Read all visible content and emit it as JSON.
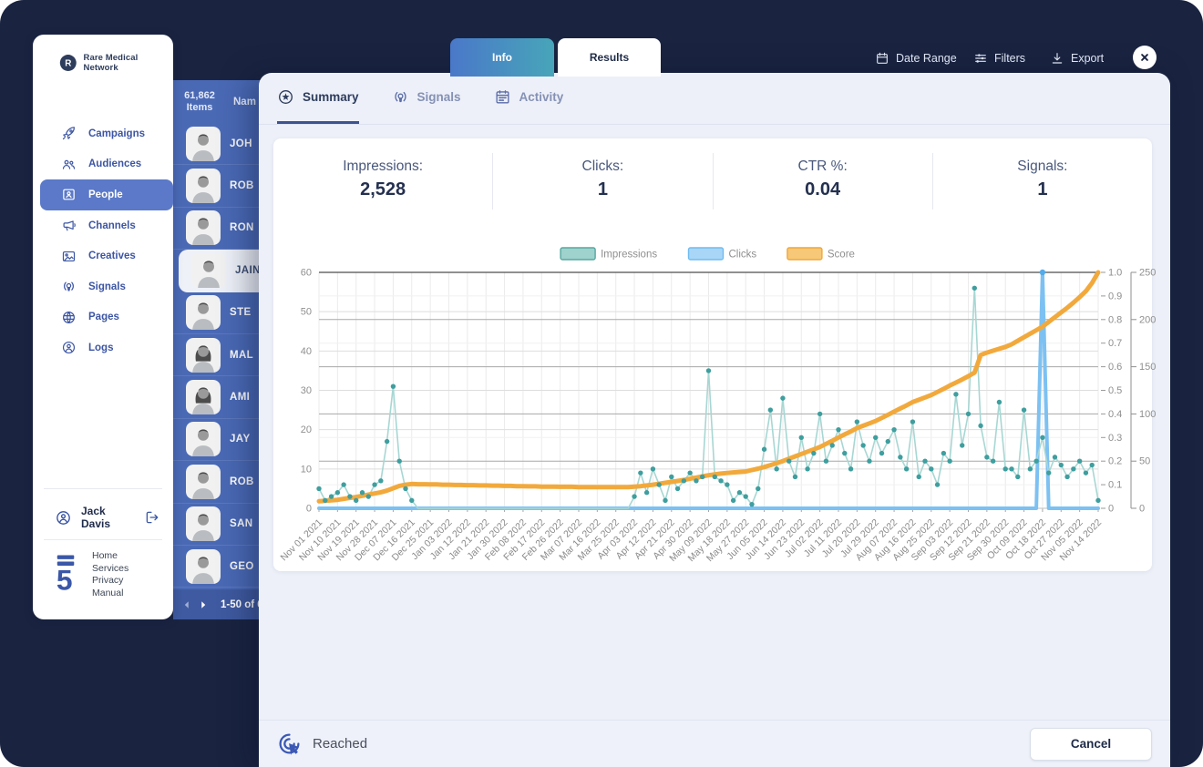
{
  "colors": {
    "frame_navy": "#1A2441",
    "panel_blue": "#4A69B5",
    "active_nav_blue": "#5B79C8",
    "impressions_teal": "#3F9E9E",
    "clicks_blue": "#7CC1F2",
    "score_orange": "#F2A93C",
    "info_tab_gradient_start": "#4A78C9",
    "info_tab_gradient_end": "#47A5B9"
  },
  "sidebar": {
    "brand": "Rare Medical Network",
    "items": [
      {
        "label": "Campaigns",
        "icon": "rocket-icon",
        "active": false
      },
      {
        "label": "Audiences",
        "icon": "audiences-icon",
        "active": false
      },
      {
        "label": "People",
        "icon": "people-badge-icon",
        "active": true
      },
      {
        "label": "Channels",
        "icon": "megaphone-icon",
        "active": false
      },
      {
        "label": "Creatives",
        "icon": "image-icon",
        "active": false
      },
      {
        "label": "Signals",
        "icon": "signal-bulb-icon",
        "active": false
      },
      {
        "label": "Pages",
        "icon": "globe-icon",
        "active": false
      },
      {
        "label": "Logs",
        "icon": "person-circle-icon",
        "active": false
      }
    ],
    "user": {
      "name": "Jack Davis"
    },
    "footer_links": [
      "Home",
      "Services",
      "Privacy",
      "Manual"
    ]
  },
  "header": {
    "tabs": [
      {
        "label": "Info",
        "active": false
      },
      {
        "label": "Results",
        "active": true
      }
    ],
    "actions": [
      {
        "label": "Date Range",
        "icon": "calendar-icon"
      },
      {
        "label": "Filters",
        "icon": "filters-icon"
      },
      {
        "label": "Export",
        "icon": "export-icon"
      }
    ]
  },
  "people_panel": {
    "items_count": "61,862",
    "items_label": "Items",
    "column_header": "Nam",
    "rows": [
      {
        "name": "JOH",
        "avatar": "male-doctor-avatar",
        "selected": false
      },
      {
        "name": "ROB",
        "avatar": "male-doctor-avatar",
        "selected": false
      },
      {
        "name": "RON",
        "avatar": "male-doctor-avatar",
        "selected": false
      },
      {
        "name": "JAIN",
        "avatar": "male-doctor-avatar",
        "selected": true
      },
      {
        "name": "STE",
        "avatar": "male-doctor-avatar",
        "selected": false
      },
      {
        "name": "MAL",
        "avatar": "female-doctor-avatar",
        "selected": false
      },
      {
        "name": "AMI",
        "avatar": "female-doctor-avatar",
        "selected": false
      },
      {
        "name": "JAY",
        "avatar": "male-doctor-avatar",
        "selected": false
      },
      {
        "name": "ROB",
        "avatar": "male-doctor-avatar",
        "selected": false
      },
      {
        "name": "SAN",
        "avatar": "male-doctor-avatar",
        "selected": false
      },
      {
        "name": "GEO",
        "avatar": "male-doctor-avatar",
        "selected": false
      }
    ],
    "pagination": "1-50 of 6"
  },
  "modal": {
    "tabs": [
      {
        "label": "Summary",
        "icon": "star-circle-icon",
        "active": true
      },
      {
        "label": "Signals",
        "icon": "signal-bulb-icon",
        "active": false
      },
      {
        "label": "Activity",
        "icon": "calendar-grid-icon",
        "active": false
      }
    ],
    "stats": [
      {
        "label": "Impressions:",
        "value": "2,528"
      },
      {
        "label": "Clicks:",
        "value": "1"
      },
      {
        "label": "CTR %:",
        "value": "0.04"
      },
      {
        "label": "Signals:",
        "value": "1"
      }
    ],
    "footer": {
      "status_label": "Reached",
      "cancel_label": "Cancel"
    }
  },
  "chart_data": {
    "type": "line",
    "label_every": 3,
    "x_labels": [
      "Nov 01 2021",
      "Nov 10 2021",
      "Nov 19 2021",
      "Nov 28 2021",
      "Dec 07 2021",
      "Dec 16 2021",
      "Dec 25 2021",
      "Jan 03 2022",
      "Jan 12 2022",
      "Jan 21 2022",
      "Jan 30 2022",
      "Feb 08 2022",
      "Feb 17 2022",
      "Feb 26 2022",
      "Mar 07 2022",
      "Mar 16 2022",
      "Mar 25 2022",
      "Apr 03 2022",
      "Apr 12 2022",
      "Apr 21 2022",
      "Apr 30 2022",
      "May 09 2022",
      "May 18 2022",
      "May 27 2022",
      "Jun 05 2022",
      "Jun 14 2022",
      "Jun 23 2022",
      "Jul 02 2022",
      "Jul 11 2022",
      "Jul 20 2022",
      "Jul 29 2022",
      "Aug 07 2022",
      "Aug 16 2022",
      "Aug 25 2022",
      "Sep 03 2022",
      "Sep 12 2022",
      "Sep 21 2022",
      "Sep 30 2022",
      "Oct 09 2022",
      "Oct 18 2022",
      "Oct 27 2022",
      "Nov 05 2022",
      "Nov 14 2022"
    ],
    "left_axis": {
      "max": 60,
      "tick_labels": [
        "0",
        "10",
        "20",
        "30",
        "40",
        "50",
        "60"
      ]
    },
    "right_axis_1": {
      "max": 1,
      "tick_labels": [
        "0",
        "0.1",
        "0.2",
        "0.3",
        "0.4",
        "0.5",
        "0.6",
        "0.7",
        "0.8",
        "0.9",
        "1.0"
      ]
    },
    "right_axis_2": {
      "max": 250,
      "tick_labels": [
        "0",
        "50",
        "100",
        "150",
        "200",
        "250"
      ]
    },
    "series": [
      {
        "name": "Impressions",
        "axis": "left",
        "line_color": "#A7D7D3",
        "dot_color": "#3F9E9E",
        "legend_fill": "#9FD2CD",
        "legend_stroke": "#55A79F",
        "values": [
          5,
          2,
          3,
          4,
          6,
          3,
          2,
          4,
          3,
          6,
          7,
          17,
          31,
          12,
          5,
          2,
          0,
          0,
          0,
          0,
          0,
          0,
          0,
          0,
          0,
          0,
          0,
          0,
          0,
          0,
          0,
          0,
          0,
          0,
          0,
          0,
          0,
          0,
          0,
          0,
          0,
          0,
          0,
          0,
          0,
          0,
          0,
          0,
          0,
          0,
          0,
          3,
          9,
          4,
          10,
          6,
          2,
          8,
          5,
          7,
          9,
          7,
          8,
          35,
          8,
          7,
          6,
          2,
          4,
          3,
          1,
          5,
          15,
          25,
          10,
          28,
          12,
          8,
          18,
          10,
          14,
          24,
          12,
          16,
          20,
          14,
          10,
          22,
          16,
          12,
          18,
          14,
          17,
          20,
          13,
          10,
          22,
          8,
          12,
          10,
          6,
          14,
          12,
          29,
          16,
          24,
          56,
          21,
          13,
          12,
          27,
          10,
          10,
          8,
          25,
          10,
          12,
          18,
          9,
          13,
          11,
          8,
          10,
          12,
          9,
          11,
          2
        ]
      },
      {
        "name": "Clicks",
        "axis": "normalized",
        "line_color": "#7CC1F2",
        "dot_color": "#54ABE8",
        "legend_fill": "#A9D6F7",
        "legend_stroke": "#6FBBF0",
        "values": [
          0,
          0,
          0,
          0,
          0,
          0,
          0,
          0,
          0,
          0,
          0,
          0,
          0,
          0,
          0,
          0,
          0,
          0,
          0,
          0,
          0,
          0,
          0,
          0,
          0,
          0,
          0,
          0,
          0,
          0,
          0,
          0,
          0,
          0,
          0,
          0,
          0,
          0,
          0,
          0,
          0,
          0,
          0,
          0,
          0,
          0,
          0,
          0,
          0,
          0,
          0,
          0,
          0,
          0,
          0,
          0,
          0,
          0,
          0,
          0,
          0,
          0,
          0,
          0,
          0,
          0,
          0,
          0,
          0,
          0,
          0,
          0,
          0,
          0,
          0,
          0,
          0,
          0,
          0,
          0,
          0,
          0,
          0,
          0,
          0,
          0,
          0,
          0,
          0,
          0,
          0,
          0,
          0,
          0,
          0,
          0,
          0,
          0,
          0,
          0,
          0,
          0,
          0,
          0,
          0,
          0,
          0,
          0,
          0,
          0,
          0,
          0,
          0,
          0,
          0,
          0,
          0,
          1,
          0,
          0,
          0,
          0,
          0,
          0,
          0,
          0,
          0
        ]
      },
      {
        "name": "Score",
        "axis": "right1",
        "line_color": "#F2A93C",
        "dot_color": "#F2A93C",
        "legend_fill": "#F7C878",
        "legend_stroke": "#F0A63A",
        "values": [
          0.03,
          0.032,
          0.034,
          0.036,
          0.04,
          0.044,
          0.048,
          0.053,
          0.058,
          0.063,
          0.068,
          0.075,
          0.085,
          0.095,
          0.1,
          0.103,
          0.102,
          0.102,
          0.101,
          0.101,
          0.1,
          0.1,
          0.099,
          0.099,
          0.098,
          0.098,
          0.097,
          0.097,
          0.096,
          0.096,
          0.095,
          0.095,
          0.094,
          0.094,
          0.093,
          0.093,
          0.092,
          0.092,
          0.092,
          0.091,
          0.091,
          0.091,
          0.09,
          0.09,
          0.09,
          0.09,
          0.09,
          0.09,
          0.09,
          0.09,
          0.09,
          0.092,
          0.094,
          0.097,
          0.1,
          0.104,
          0.108,
          0.112,
          0.116,
          0.12,
          0.125,
          0.13,
          0.135,
          0.14,
          0.144,
          0.147,
          0.15,
          0.152,
          0.154,
          0.156,
          0.162,
          0.168,
          0.175,
          0.183,
          0.191,
          0.2,
          0.21,
          0.22,
          0.23,
          0.24,
          0.25,
          0.26,
          0.273,
          0.286,
          0.3,
          0.313,
          0.326,
          0.34,
          0.35,
          0.36,
          0.37,
          0.383,
          0.396,
          0.41,
          0.423,
          0.436,
          0.45,
          0.46,
          0.47,
          0.48,
          0.493,
          0.506,
          0.52,
          0.533,
          0.546,
          0.56,
          0.575,
          0.65,
          0.66,
          0.668,
          0.676,
          0.684,
          0.695,
          0.71,
          0.725,
          0.74,
          0.755,
          0.77,
          0.79,
          0.81,
          0.83,
          0.85,
          0.872,
          0.895,
          0.92,
          0.955,
          1.0
        ]
      }
    ]
  }
}
